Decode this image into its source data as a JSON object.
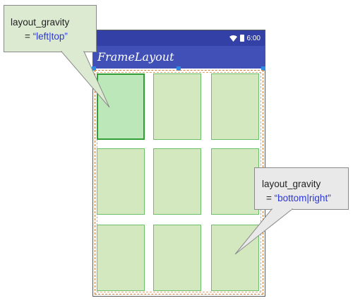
{
  "phone": {
    "status_time": "6:00",
    "app_title": "FrameLayout"
  },
  "callouts": {
    "top_left": {
      "attribute": "layout_gravity",
      "equals": "=",
      "value": "“left|top”"
    },
    "bottom_right": {
      "attribute": "layout_gravity",
      "equals": "=",
      "value": "“bottom|right”"
    }
  },
  "grid": {
    "rows": 3,
    "columns": 3,
    "selected_cell": [
      0,
      0
    ]
  },
  "colors": {
    "status_bar": "#3341a6",
    "app_bar": "#4150b6",
    "cell_fill": "#d4e8c0",
    "cell_selected_fill": "#bce7b9",
    "callout_green": "#dcead2",
    "callout_gray": "#e9e9e9",
    "value_text": "#2b36d6"
  }
}
